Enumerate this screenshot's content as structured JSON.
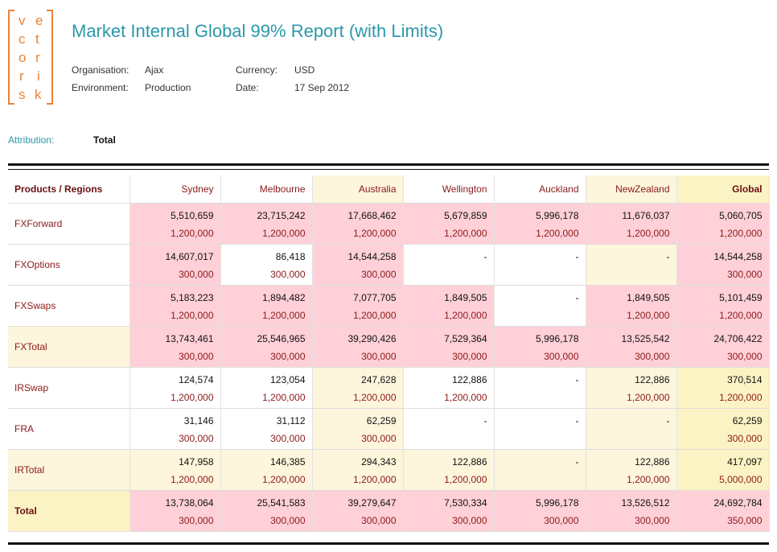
{
  "logo": {
    "letters": [
      "v",
      "e",
      "c",
      "t",
      "o",
      "r",
      "r",
      "i",
      "s",
      "k"
    ]
  },
  "title": "Market Internal Global 99% Report (with Limits)",
  "meta": {
    "organisation_label": "Organisation:",
    "organisation_value": "Ajax",
    "environment_label": "Environment:",
    "environment_value": "Production",
    "currency_label": "Currency:",
    "currency_value": "USD",
    "date_label": "Date:",
    "date_value": "17 Sep 2012"
  },
  "attribution": {
    "label": "Attribution:",
    "value": "Total"
  },
  "table": {
    "corner": "Products / Regions",
    "columns": [
      "Sydney",
      "Melbourne",
      "Australia",
      "Wellington",
      "Auckland",
      "NewZealand",
      "Global"
    ],
    "rows": [
      {
        "label": "FXForward",
        "values": [
          "5,510,659",
          "23,715,242",
          "17,668,462",
          "5,679,859",
          "5,996,178",
          "11,676,037",
          "5,060,705"
        ],
        "limits": [
          "1,200,000",
          "1,200,000",
          "1,200,000",
          "1,200,000",
          "1,200,000",
          "1,200,000",
          "1,200,000"
        ],
        "colors": [
          "pink",
          "pink",
          "pink",
          "pink",
          "pink",
          "pink",
          "pink"
        ],
        "label_color": "white",
        "bold": false
      },
      {
        "label": "FXOptions",
        "values": [
          "14,607,017",
          "86,418",
          "14,544,258",
          "-",
          "-",
          "-",
          "14,544,258"
        ],
        "limits": [
          "300,000",
          "300,000",
          "300,000",
          "",
          "",
          "",
          "300,000"
        ],
        "colors": [
          "pink",
          "white",
          "pink",
          "white",
          "white",
          "cream",
          "pink"
        ],
        "label_color": "white",
        "bold": false
      },
      {
        "label": "FXSwaps",
        "values": [
          "5,183,223",
          "1,894,482",
          "7,077,705",
          "1,849,505",
          "-",
          "1,849,505",
          "5,101,459"
        ],
        "limits": [
          "1,200,000",
          "1,200,000",
          "1,200,000",
          "1,200,000",
          "",
          "1,200,000",
          "1,200,000"
        ],
        "colors": [
          "pink",
          "pink",
          "pink",
          "pink",
          "white",
          "pink",
          "pink"
        ],
        "label_color": "white",
        "bold": false
      },
      {
        "label": "FXTotal",
        "values": [
          "13,743,461",
          "25,546,965",
          "39,290,426",
          "7,529,364",
          "5,996,178",
          "13,525,542",
          "24,706,422"
        ],
        "limits": [
          "300,000",
          "300,000",
          "300,000",
          "300,000",
          "300,000",
          "300,000",
          "300,000"
        ],
        "colors": [
          "pink",
          "pink",
          "pink",
          "pink",
          "pink",
          "pink",
          "pink"
        ],
        "label_color": "cream",
        "bold": false
      },
      {
        "label": "IRSwap",
        "values": [
          "124,574",
          "123,054",
          "247,628",
          "122,886",
          "-",
          "122,886",
          "370,514"
        ],
        "limits": [
          "1,200,000",
          "1,200,000",
          "1,200,000",
          "1,200,000",
          "",
          "1,200,000",
          "1,200,000"
        ],
        "colors": [
          "white",
          "white",
          "cream",
          "white",
          "white",
          "cream",
          "yellow"
        ],
        "label_color": "white",
        "bold": false
      },
      {
        "label": "FRA",
        "values": [
          "31,146",
          "31,112",
          "62,259",
          "-",
          "-",
          "-",
          "62,259"
        ],
        "limits": [
          "300,000",
          "300,000",
          "300,000",
          "",
          "",
          "",
          "300,000"
        ],
        "colors": [
          "white",
          "white",
          "cream",
          "white",
          "white",
          "cream",
          "yellow"
        ],
        "label_color": "white",
        "bold": false
      },
      {
        "label": "IRTotal",
        "values": [
          "147,958",
          "146,385",
          "294,343",
          "122,886",
          "-",
          "122,886",
          "417,097"
        ],
        "limits": [
          "1,200,000",
          "1,200,000",
          "1,200,000",
          "1,200,000",
          "",
          "1,200,000",
          "5,000,000"
        ],
        "colors": [
          "cream",
          "cream",
          "cream",
          "cream",
          "cream",
          "cream",
          "yellow"
        ],
        "label_color": "cream",
        "bold": false
      },
      {
        "label": "Total",
        "values": [
          "13,738,064",
          "25,541,583",
          "39,279,647",
          "7,530,334",
          "5,996,178",
          "13,526,512",
          "24,692,784"
        ],
        "limits": [
          "300,000",
          "300,000",
          "300,000",
          "300,000",
          "300,000",
          "300,000",
          "350,000"
        ],
        "colors": [
          "pink",
          "pink",
          "pink",
          "pink",
          "pink",
          "pink",
          "pink"
        ],
        "label_color": "yellow",
        "bold": true
      }
    ],
    "header_colors": [
      "white",
      "white",
      "cream",
      "white",
      "white",
      "cream",
      "yellow"
    ]
  }
}
